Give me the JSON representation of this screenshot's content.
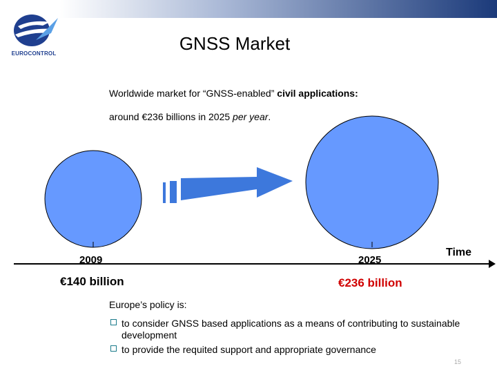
{
  "header": {
    "logo_text": "EUROCONTROL",
    "title": "GNSS Market"
  },
  "intro": {
    "line1_start": "Worldwide market for “GNSS-enabled” ",
    "line1_bold": "civil applications:",
    "line2_start": "around €236 billions in 2025 ",
    "line2_italic": "per year",
    "line2_end": "."
  },
  "timeline": {
    "axis_label": "Time",
    "points": [
      {
        "year": "2009",
        "value": "€140 billion"
      },
      {
        "year": "2025",
        "value": "€236 billion"
      }
    ]
  },
  "policy": {
    "heading": "Europe’s policy is:",
    "items": [
      "to consider GNSS based applications as a means of contributing to sustainable development",
      "to provide the requited support and appropriate governance"
    ]
  },
  "footer": {
    "page_number": "15"
  },
  "colors": {
    "circle_fill": "#6699ff",
    "arrow_fill": "#3d78dc",
    "accent_red": "#d00000",
    "brand_blue": "#1f3f8f",
    "bullet_teal": "#1a7a8a"
  }
}
